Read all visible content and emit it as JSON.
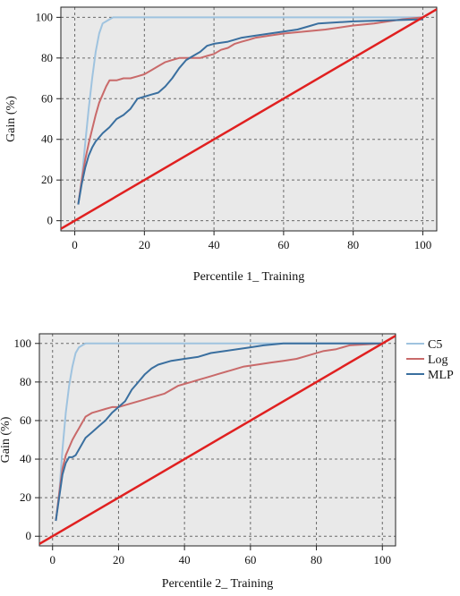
{
  "chart_data": [
    {
      "type": "line",
      "title": "",
      "xlabel": "Percentile 1_ Training",
      "ylabel": "Gain (%)",
      "xlim": [
        -4,
        104
      ],
      "ylim": [
        -5,
        105
      ],
      "x_ticks": [
        0,
        20,
        40,
        60,
        80,
        100
      ],
      "y_ticks": [
        0,
        20,
        40,
        60,
        80,
        100
      ],
      "grid": true,
      "legend": null,
      "series": [
        {
          "name": "C5",
          "color": "#9fc3df",
          "points": [
            [
              1,
              8
            ],
            [
              2,
              20
            ],
            [
              3,
              38
            ],
            [
              4,
              55
            ],
            [
              5,
              70
            ],
            [
              6,
              83
            ],
            [
              7,
              92
            ],
            [
              8,
              97
            ],
            [
              9,
              98
            ],
            [
              10,
              99
            ],
            [
              11,
              100
            ],
            [
              100,
              100
            ]
          ]
        },
        {
          "name": "Log",
          "color": "#c96a6a",
          "points": [
            [
              1,
              8
            ],
            [
              2,
              20
            ],
            [
              3,
              30
            ],
            [
              4,
              38
            ],
            [
              5,
              45
            ],
            [
              6,
              52
            ],
            [
              7,
              58
            ],
            [
              8,
              62
            ],
            [
              9,
              66
            ],
            [
              10,
              69
            ],
            [
              12,
              69
            ],
            [
              14,
              70
            ],
            [
              16,
              70
            ],
            [
              18,
              71
            ],
            [
              20,
              72
            ],
            [
              22,
              74
            ],
            [
              24,
              76
            ],
            [
              26,
              78
            ],
            [
              28,
              79
            ],
            [
              30,
              80
            ],
            [
              32,
              80
            ],
            [
              34,
              80
            ],
            [
              36,
              80
            ],
            [
              38,
              81
            ],
            [
              40,
              82
            ],
            [
              42,
              84
            ],
            [
              44,
              85
            ],
            [
              46,
              87
            ],
            [
              48,
              88
            ],
            [
              50,
              89
            ],
            [
              52,
              90
            ],
            [
              56,
              91
            ],
            [
              60,
              92
            ],
            [
              66,
              93
            ],
            [
              72,
              94
            ],
            [
              80,
              96
            ],
            [
              86,
              97
            ],
            [
              90,
              98
            ],
            [
              94,
              99
            ],
            [
              100,
              100
            ]
          ]
        },
        {
          "name": "MLP",
          "color": "#3a6f9f",
          "points": [
            [
              1,
              8
            ],
            [
              2,
              18
            ],
            [
              3,
              26
            ],
            [
              4,
              32
            ],
            [
              5,
              36
            ],
            [
              6,
              39
            ],
            [
              7,
              41
            ],
            [
              8,
              43
            ],
            [
              10,
              46
            ],
            [
              12,
              50
            ],
            [
              14,
              52
            ],
            [
              16,
              55
            ],
            [
              18,
              60
            ],
            [
              20,
              61
            ],
            [
              22,
              62
            ],
            [
              24,
              63
            ],
            [
              26,
              66
            ],
            [
              28,
              70
            ],
            [
              30,
              75
            ],
            [
              32,
              79
            ],
            [
              34,
              81
            ],
            [
              36,
              83
            ],
            [
              38,
              86
            ],
            [
              40,
              87
            ],
            [
              44,
              88
            ],
            [
              48,
              90
            ],
            [
              52,
              91
            ],
            [
              56,
              92
            ],
            [
              60,
              93
            ],
            [
              64,
              94
            ],
            [
              68,
              96
            ],
            [
              70,
              97
            ],
            [
              80,
              98
            ],
            [
              100,
              99
            ]
          ]
        },
        {
          "name": "",
          "color": "#e02020",
          "points": [
            [
              -4,
              -4
            ],
            [
              104,
              104
            ]
          ]
        }
      ]
    },
    {
      "type": "line",
      "title": "",
      "xlabel": "Percentile 2_ Training",
      "ylabel": "Gain (%)",
      "xlim": [
        -4,
        104
      ],
      "ylim": [
        -5,
        105
      ],
      "x_ticks": [
        0,
        20,
        40,
        60,
        80,
        100
      ],
      "y_ticks": [
        0,
        20,
        40,
        60,
        80,
        100
      ],
      "grid": true,
      "legend": "right",
      "series": [
        {
          "name": "C5",
          "color": "#9fc3df",
          "points": [
            [
              1,
              8
            ],
            [
              2,
              22
            ],
            [
              3,
              45
            ],
            [
              4,
              64
            ],
            [
              5,
              78
            ],
            [
              6,
              88
            ],
            [
              7,
              95
            ],
            [
              8,
              98
            ],
            [
              9,
              99
            ],
            [
              10,
              100
            ],
            [
              100,
              100
            ]
          ]
        },
        {
          "name": "Log",
          "color": "#c96a6a",
          "points": [
            [
              1,
              8
            ],
            [
              2,
              22
            ],
            [
              3,
              35
            ],
            [
              4,
              42
            ],
            [
              5,
              46
            ],
            [
              6,
              50
            ],
            [
              7,
              53
            ],
            [
              8,
              56
            ],
            [
              9,
              59
            ],
            [
              10,
              62
            ],
            [
              12,
              64
            ],
            [
              14,
              65
            ],
            [
              16,
              66
            ],
            [
              18,
              67
            ],
            [
              20,
              67
            ],
            [
              22,
              68
            ],
            [
              24,
              69
            ],
            [
              26,
              70
            ],
            [
              28,
              71
            ],
            [
              30,
              72
            ],
            [
              32,
              73
            ],
            [
              34,
              74
            ],
            [
              36,
              76
            ],
            [
              38,
              78
            ],
            [
              40,
              79
            ],
            [
              42,
              80
            ],
            [
              44,
              81
            ],
            [
              46,
              82
            ],
            [
              48,
              83
            ],
            [
              50,
              84
            ],
            [
              54,
              86
            ],
            [
              58,
              88
            ],
            [
              62,
              89
            ],
            [
              66,
              90
            ],
            [
              70,
              91
            ],
            [
              74,
              92
            ],
            [
              78,
              94
            ],
            [
              82,
              96
            ],
            [
              86,
              97
            ],
            [
              90,
              99
            ],
            [
              100,
              100
            ]
          ]
        },
        {
          "name": "MLP",
          "color": "#3a6f9f",
          "points": [
            [
              1,
              8
            ],
            [
              2,
              20
            ],
            [
              3,
              32
            ],
            [
              4,
              38
            ],
            [
              5,
              41
            ],
            [
              6,
              41
            ],
            [
              7,
              42
            ],
            [
              8,
              45
            ],
            [
              9,
              48
            ],
            [
              10,
              51
            ],
            [
              12,
              54
            ],
            [
              14,
              57
            ],
            [
              16,
              60
            ],
            [
              18,
              64
            ],
            [
              20,
              67
            ],
            [
              22,
              70
            ],
            [
              24,
              76
            ],
            [
              26,
              80
            ],
            [
              28,
              84
            ],
            [
              30,
              87
            ],
            [
              32,
              89
            ],
            [
              36,
              91
            ],
            [
              40,
              92
            ],
            [
              44,
              93
            ],
            [
              48,
              95
            ],
            [
              52,
              96
            ],
            [
              56,
              97
            ],
            [
              60,
              98
            ],
            [
              64,
              99
            ],
            [
              70,
              100
            ],
            [
              100,
              100
            ]
          ]
        },
        {
          "name": "",
          "color": "#e02020",
          "points": [
            [
              -4,
              -4
            ],
            [
              104,
              104
            ]
          ]
        }
      ]
    }
  ]
}
